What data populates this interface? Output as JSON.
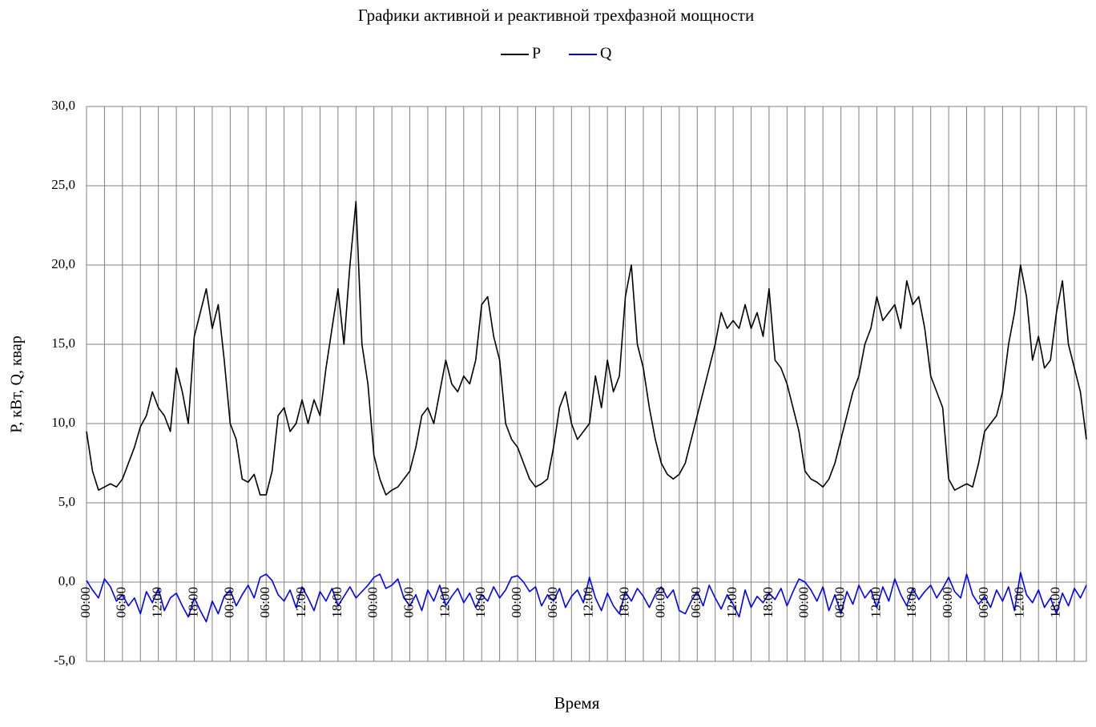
{
  "chart_data": {
    "type": "line",
    "title": "Графики активной и реактивной трехфазной мощности",
    "x_label": "Время",
    "y_label": "P, кВт, Q, квар",
    "ylim": [
      -5,
      30
    ],
    "yticks": [
      {
        "value": -5,
        "label": "-5,0"
      },
      {
        "value": 0,
        "label": "0,0"
      },
      {
        "value": 5,
        "label": "5,0"
      },
      {
        "value": 10,
        "label": "10,0"
      },
      {
        "value": 15,
        "label": "15,0"
      },
      {
        "value": 20,
        "label": "20,0"
      },
      {
        "value": 25,
        "label": "25,0"
      },
      {
        "value": 30,
        "label": "30,0"
      }
    ],
    "grid": true,
    "legend": "top",
    "categories": [
      "00:00",
      null,
      null,
      null,
      null,
      null,
      "06:00",
      null,
      null,
      null,
      null,
      null,
      "12:00",
      null,
      null,
      null,
      null,
      null,
      "18:00",
      null,
      null,
      null,
      null,
      null,
      "00:00",
      null,
      null,
      null,
      null,
      null,
      "06:00",
      null,
      null,
      null,
      null,
      null,
      "12:00",
      null,
      null,
      null,
      null,
      null,
      "18:00",
      null,
      null,
      null,
      null,
      null,
      "00:00",
      null,
      null,
      null,
      null,
      null,
      "06:00",
      null,
      null,
      null,
      null,
      null,
      "12:00",
      null,
      null,
      null,
      null,
      null,
      "18:00",
      null,
      null,
      null,
      null,
      null,
      "00:00",
      null,
      null,
      null,
      null,
      null,
      "06:00",
      null,
      null,
      null,
      null,
      null,
      "12:00",
      null,
      null,
      null,
      null,
      null,
      "18:00",
      null,
      null,
      null,
      null,
      null,
      "00:00",
      null,
      null,
      null,
      null,
      null,
      "06:00",
      null,
      null,
      null,
      null,
      null,
      "12:00",
      null,
      null,
      null,
      null,
      null,
      "18:00",
      null,
      null,
      null,
      null,
      null,
      "00:00",
      null,
      null,
      null,
      null,
      null,
      "06:00",
      null,
      null,
      null,
      null,
      null,
      "12:00",
      null,
      null,
      null,
      null,
      null,
      "18:00",
      null,
      null,
      null,
      null,
      null,
      "00:00",
      null,
      null,
      null,
      null,
      null,
      "06:00",
      null,
      null,
      null,
      null,
      null,
      "12:00",
      null,
      null,
      null,
      null,
      null,
      "18:00",
      null,
      null,
      null,
      null,
      null
    ],
    "series": [
      {
        "name": "P",
        "color": "#000000",
        "values": [
          9.5,
          7.0,
          5.8,
          6.0,
          6.2,
          6.0,
          6.5,
          7.5,
          8.5,
          9.8,
          10.5,
          12.0,
          11.0,
          10.5,
          9.5,
          13.5,
          12.0,
          10.0,
          15.5,
          17.0,
          18.5,
          16.0,
          17.5,
          14.0,
          10.0,
          9.0,
          6.5,
          6.3,
          6.8,
          5.5,
          5.5,
          7.0,
          10.5,
          11.0,
          9.5,
          10.0,
          11.5,
          10.0,
          11.5,
          10.5,
          13.5,
          16.0,
          18.5,
          15.0,
          20.0,
          24.0,
          15.0,
          12.5,
          8.0,
          6.5,
          5.5,
          5.8,
          6.0,
          6.5,
          7.0,
          8.5,
          10.5,
          11.0,
          10.0,
          12.0,
          14.0,
          12.5,
          12.0,
          13.0,
          12.5,
          14.0,
          17.5,
          18.0,
          15.5,
          14.0,
          10.0,
          9.0,
          8.5,
          7.5,
          6.5,
          6.0,
          6.2,
          6.5,
          8.5,
          11.0,
          12.0,
          10.0,
          9.0,
          9.5,
          10.0,
          13.0,
          11.0,
          14.0,
          12.0,
          13.0,
          18.0,
          20.0,
          15.0,
          13.5,
          11.0,
          9.0,
          7.5,
          6.8,
          6.5,
          6.8,
          7.5,
          9.0,
          10.5,
          12.0,
          13.5,
          15.0,
          17.0,
          16.0,
          16.5,
          16.0,
          17.5,
          16.0,
          17.0,
          15.5,
          18.5,
          14.0,
          13.5,
          12.5,
          11.0,
          9.5,
          7.0,
          6.5,
          6.3,
          6.0,
          6.5,
          7.5,
          9.0,
          10.5,
          12.0,
          13.0,
          15.0,
          16.0,
          18.0,
          16.5,
          17.0,
          17.5,
          16.0,
          19.0,
          17.5,
          18.0,
          16.0,
          13.0,
          12.0,
          11.0,
          6.5,
          5.8,
          6.0,
          6.2,
          6.0,
          7.5,
          9.5,
          10.0,
          10.5,
          12.0,
          15.0,
          17.0,
          20.0,
          18.0,
          14.0,
          15.5,
          13.5,
          14.0,
          17.0,
          19.0,
          15.0,
          13.5,
          12.0,
          9.0
        ]
      },
      {
        "name": "Q",
        "color": "#0000ff",
        "values": [
          0.1,
          -0.5,
          -1.0,
          0.2,
          -0.3,
          -1.2,
          -0.8,
          -1.5,
          -1.0,
          -2.0,
          -0.6,
          -1.3,
          -0.4,
          -1.8,
          -1.0,
          -0.7,
          -1.5,
          -2.2,
          -1.0,
          -1.8,
          -2.5,
          -1.2,
          -2.0,
          -0.9,
          -0.5,
          -1.5,
          -0.8,
          -0.2,
          -1.0,
          0.3,
          0.5,
          0.1,
          -0.8,
          -1.2,
          -0.5,
          -1.6,
          -0.3,
          -1.0,
          -1.8,
          -0.6,
          -1.2,
          -0.4,
          -1.5,
          -0.9,
          -0.3,
          -1.0,
          -0.6,
          -0.2,
          0.3,
          0.5,
          -0.4,
          -0.2,
          0.2,
          -1.0,
          -1.5,
          -0.8,
          -1.8,
          -0.5,
          -1.2,
          -0.2,
          -1.5,
          -0.9,
          -0.4,
          -1.3,
          -0.7,
          -1.6,
          -0.8,
          -1.2,
          -0.3,
          -1.0,
          -0.5,
          0.3,
          0.4,
          0.0,
          -0.6,
          -0.3,
          -1.5,
          -0.8,
          -1.2,
          -0.4,
          -1.6,
          -0.9,
          -0.5,
          -1.3,
          0.3,
          -1.0,
          -1.8,
          -0.7,
          -1.5,
          -2.0,
          -0.6,
          -1.2,
          -0.4,
          -0.9,
          -1.6,
          -0.8,
          -0.3,
          -1.0,
          -0.5,
          -1.8,
          -2.0,
          -1.2,
          -0.6,
          -1.5,
          -0.2,
          -1.0,
          -1.7,
          -0.8,
          -1.4,
          -2.2,
          -0.5,
          -1.6,
          -0.9,
          -1.3,
          -0.7,
          -1.1,
          -0.4,
          -1.5,
          -0.6,
          0.2,
          0.0,
          -0.5,
          -1.2,
          -0.3,
          -1.8,
          -0.8,
          -2.0,
          -0.6,
          -1.4,
          -0.2,
          -1.0,
          -0.5,
          -1.6,
          -0.3,
          -1.2,
          0.2,
          -0.8,
          -1.5,
          -0.4,
          -1.1,
          -0.6,
          -0.2,
          -1.0,
          -0.4,
          0.3,
          -0.6,
          -1.0,
          0.5,
          -0.8,
          -1.4,
          -0.9,
          -1.6,
          -0.5,
          -1.2,
          -0.3,
          -1.8,
          0.6,
          -0.8,
          -1.3,
          -0.5,
          -1.6,
          -1.0,
          -2.0,
          -0.7,
          -1.5,
          -0.4,
          -1.0,
          -0.2
        ]
      }
    ]
  }
}
